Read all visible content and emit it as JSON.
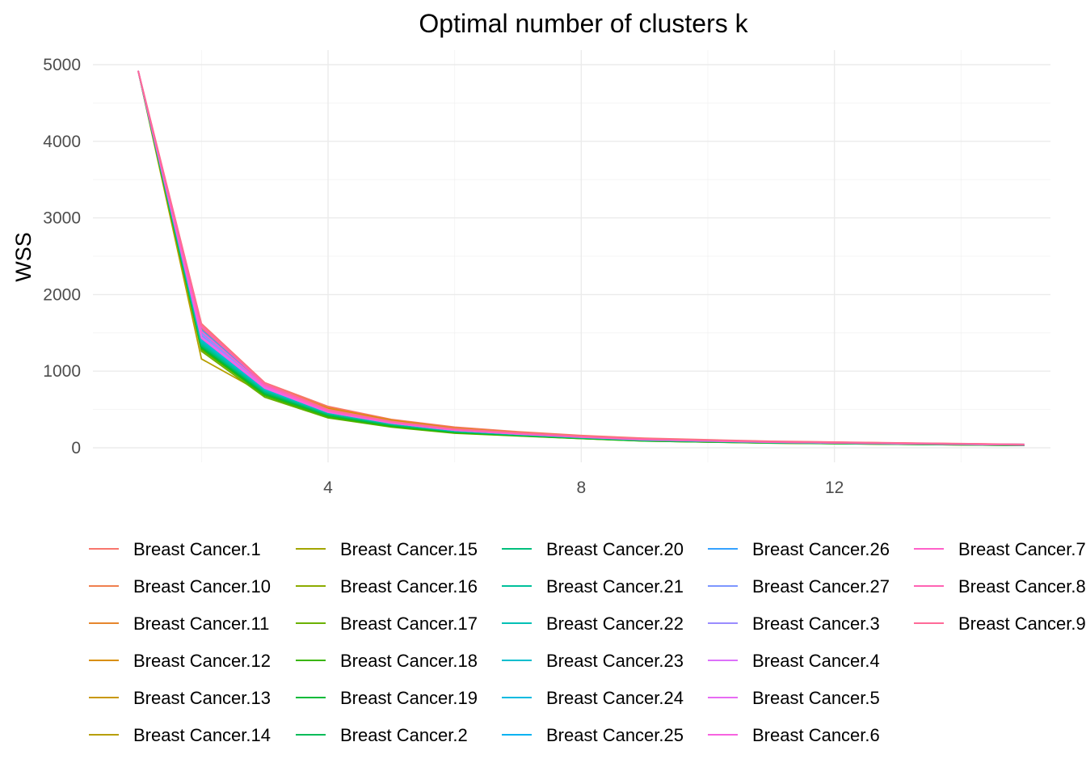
{
  "chart_data": {
    "type": "line",
    "title": "Optimal number of clusters k",
    "xlabel": "",
    "ylabel": "WSS",
    "xlim": [
      1,
      15
    ],
    "ylim": [
      0,
      5000
    ],
    "x_ticks": [
      4,
      8,
      12
    ],
    "y_ticks": [
      0,
      1000,
      2000,
      3000,
      4000,
      5000
    ],
    "grid": true,
    "legend_position": "bottom",
    "x": [
      1,
      2,
      3,
      4,
      5,
      6,
      7,
      8,
      9,
      10,
      11,
      12,
      13,
      14,
      15
    ],
    "series": [
      {
        "name": "Breast Cancer.1",
        "color": "#F8766D",
        "values": [
          4920,
          1620,
          850,
          540,
          370,
          270,
          210,
          160,
          125,
          105,
          85,
          75,
          65,
          55,
          45
        ]
      },
      {
        "name": "Breast Cancer.10",
        "color": "#F07F4E",
        "values": [
          4920,
          1560,
          830,
          530,
          360,
          260,
          205,
          155,
          120,
          100,
          82,
          72,
          62,
          52,
          43
        ]
      },
      {
        "name": "Breast Cancer.11",
        "color": "#E6862D",
        "values": [
          4920,
          1440,
          800,
          520,
          365,
          260,
          200,
          150,
          118,
          98,
          80,
          70,
          60,
          50,
          40
        ]
      },
      {
        "name": "Breast Cancer.12",
        "color": "#D98E00",
        "values": [
          4920,
          1380,
          790,
          510,
          355,
          250,
          195,
          148,
          115,
          95,
          78,
          68,
          58,
          48,
          38
        ]
      },
      {
        "name": "Breast Cancer.13",
        "color": "#C99800",
        "values": [
          4920,
          1350,
          780,
          500,
          350,
          248,
          190,
          145,
          112,
          92,
          76,
          66,
          56,
          46,
          36
        ]
      },
      {
        "name": "Breast Cancer.14",
        "color": "#B79F00",
        "values": [
          4920,
          1160,
          700,
          420,
          290,
          205,
          165,
          130,
          95,
          80,
          65,
          58,
          50,
          42,
          32
        ]
      },
      {
        "name": "Breast Cancer.15",
        "color": "#A3A500",
        "values": [
          4920,
          1280,
          690,
          410,
          285,
          200,
          160,
          125,
          92,
          78,
          64,
          56,
          48,
          40,
          31
        ]
      },
      {
        "name": "Breast Cancer.16",
        "color": "#8CAB00",
        "values": [
          4920,
          1300,
          700,
          405,
          280,
          198,
          158,
          122,
          90,
          76,
          62,
          55,
          47,
          39,
          30
        ]
      },
      {
        "name": "Breast Cancer.17",
        "color": "#6BB100",
        "values": [
          4920,
          1260,
          660,
          390,
          270,
          190,
          155,
          120,
          88,
          75,
          61,
          54,
          46,
          38,
          30
        ]
      },
      {
        "name": "Breast Cancer.18",
        "color": "#39B600",
        "values": [
          4920,
          1290,
          680,
          400,
          275,
          195,
          157,
          121,
          89,
          76,
          62,
          55,
          47,
          39,
          31
        ]
      },
      {
        "name": "Breast Cancer.19",
        "color": "#00BA38",
        "values": [
          4920,
          1310,
          700,
          420,
          290,
          205,
          162,
          126,
          93,
          79,
          65,
          57,
          49,
          41,
          33
        ]
      },
      {
        "name": "Breast Cancer.2",
        "color": "#00BC59",
        "values": [
          4920,
          1330,
          720,
          430,
          300,
          212,
          168,
          130,
          96,
          82,
          67,
          59,
          51,
          43,
          34
        ]
      },
      {
        "name": "Breast Cancer.20",
        "color": "#00BF7D",
        "values": [
          4920,
          1340,
          730,
          440,
          305,
          215,
          170,
          132,
          98,
          83,
          68,
          60,
          52,
          44,
          35
        ]
      },
      {
        "name": "Breast Cancer.21",
        "color": "#00C09B",
        "values": [
          4920,
          1360,
          745,
          450,
          310,
          218,
          172,
          134,
          100,
          85,
          70,
          62,
          53,
          45,
          36
        ]
      },
      {
        "name": "Breast Cancer.22",
        "color": "#00C0B5",
        "values": [
          4920,
          1380,
          755,
          455,
          315,
          222,
          175,
          136,
          102,
          87,
          71,
          63,
          54,
          46,
          37
        ]
      },
      {
        "name": "Breast Cancer.23",
        "color": "#00BECE",
        "values": [
          4920,
          1400,
          765,
          460,
          318,
          225,
          178,
          138,
          104,
          88,
          72,
          64,
          55,
          47,
          38
        ]
      },
      {
        "name": "Breast Cancer.24",
        "color": "#00BAE0",
        "values": [
          4920,
          1420,
          775,
          465,
          322,
          228,
          180,
          140,
          106,
          90,
          74,
          65,
          56,
          48,
          39
        ]
      },
      {
        "name": "Breast Cancer.25",
        "color": "#00B3F2",
        "values": [
          4920,
          1460,
          790,
          470,
          326,
          232,
          183,
          142,
          108,
          92,
          75,
          66,
          57,
          49,
          40
        ]
      },
      {
        "name": "Breast Cancer.26",
        "color": "#35A2FF",
        "values": [
          4920,
          1540,
          810,
          480,
          330,
          236,
          186,
          144,
          110,
          94,
          77,
          67,
          58,
          50,
          44
        ]
      },
      {
        "name": "Breast Cancer.27",
        "color": "#7D96FF",
        "values": [
          4920,
          1500,
          800,
          475,
          328,
          234,
          184,
          143,
          109,
          93,
          76,
          66,
          57,
          49,
          41
        ]
      },
      {
        "name": "Breast Cancer.3",
        "color": "#9A8CFF",
        "values": [
          4920,
          1480,
          795,
          472,
          327,
          233,
          183,
          142,
          108,
          92,
          75,
          66,
          57,
          49,
          40
        ]
      },
      {
        "name": "Breast Cancer.4",
        "color": "#DC71FA",
        "values": [
          4920,
          1450,
          785,
          468,
          324,
          230,
          181,
          141,
          107,
          91,
          74,
          65,
          56,
          48,
          39
        ]
      },
      {
        "name": "Breast Cancer.5",
        "color": "#E76BF3",
        "values": [
          4920,
          1440,
          780,
          466,
          323,
          229,
          180,
          140,
          106,
          90,
          74,
          65,
          56,
          48,
          39
        ]
      },
      {
        "name": "Breast Cancer.6",
        "color": "#F763E0",
        "values": [
          4920,
          1430,
          778,
          464,
          322,
          228,
          179,
          139,
          105,
          89,
          73,
          64,
          55,
          47,
          38
        ]
      },
      {
        "name": "Breast Cancer.7",
        "color": "#FF61C9",
        "values": [
          4920,
          1520,
          805,
          478,
          334,
          238,
          188,
          146,
          112,
          96,
          78,
          68,
          59,
          51,
          42
        ]
      },
      {
        "name": "Breast Cancer.8",
        "color": "#FF63B4",
        "values": [
          4920,
          1580,
          825,
          490,
          340,
          242,
          192,
          149,
          115,
          98,
          80,
          70,
          60,
          52,
          43
        ]
      },
      {
        "name": "Breast Cancer.9",
        "color": "#FF6A98",
        "values": [
          4920,
          1600,
          840,
          500,
          345,
          246,
          196,
          152,
          118,
          100,
          82,
          72,
          62,
          53,
          44
        ]
      }
    ]
  }
}
